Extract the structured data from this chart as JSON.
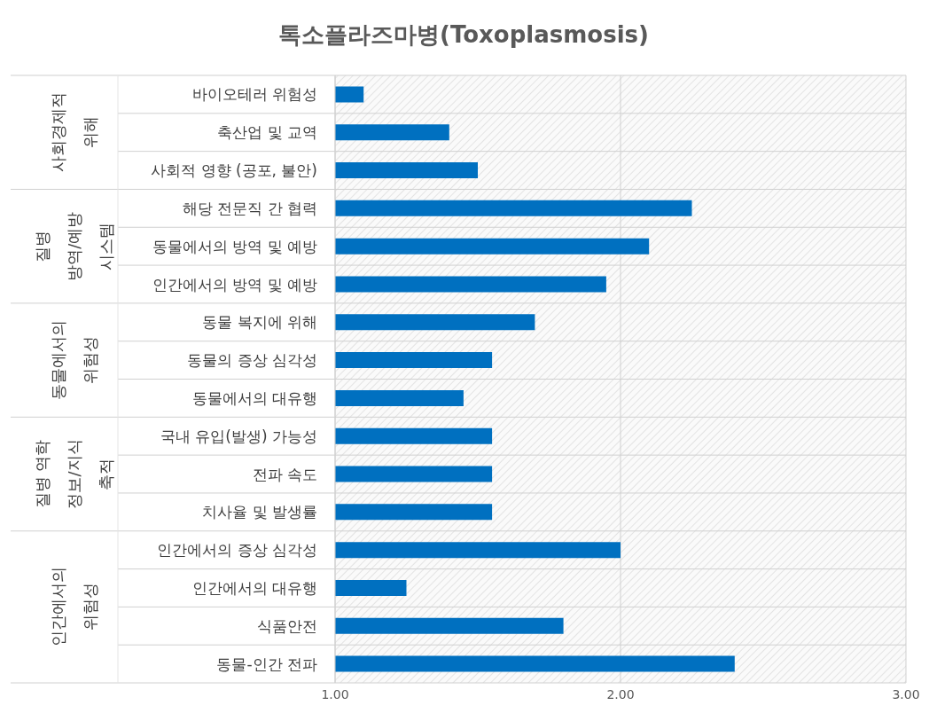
{
  "chart_data": {
    "type": "bar",
    "orientation": "horizontal",
    "title": "톡소플라즈마병(Toxoplasmosis)",
    "categories": [
      "바이오테러 위험성",
      "축산업 및 교역",
      "사회적 영향 (공포, 불안)",
      "해당 전문직 간 협력",
      "동물에서의 방역 및 예방",
      "인간에서의 방역 및 예방",
      "동물 복지에 위해",
      "동물의 증상 심각성",
      "동물에서의 대유행",
      "국내 유입(발생) 가능성",
      "전파 속도",
      "치사율 및 발생률",
      "인간에서의 증상 심각성",
      "인간에서의 대유행",
      "식품안전",
      "동물-인간 전파"
    ],
    "values": [
      1.1,
      1.4,
      1.5,
      2.25,
      2.1,
      1.95,
      1.7,
      1.55,
      1.45,
      1.55,
      1.55,
      1.55,
      2.0,
      1.25,
      1.8,
      2.4
    ],
    "color": "#0070c0",
    "xlim": [
      1,
      3
    ],
    "xticks": [
      {
        "value": 1,
        "label": "1.00"
      },
      {
        "value": 2,
        "label": "2.00"
      },
      {
        "value": 3,
        "label": "3.00"
      }
    ],
    "grid": true,
    "annotations": [
      "사회경제적 위해",
      "질병 방역/예방 시스템",
      "동물에서의 위험성",
      "질병 역학 정보/지식 축적",
      "인간에서의 위험성"
    ]
  }
}
